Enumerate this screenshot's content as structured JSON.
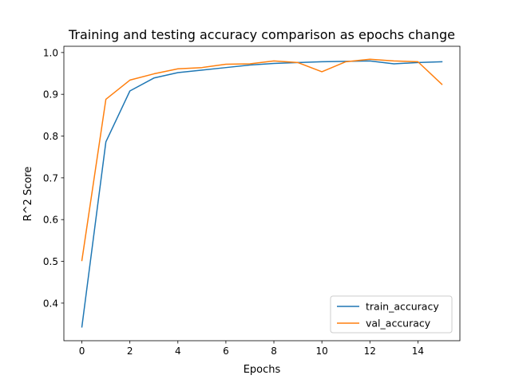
{
  "chart_data": {
    "type": "line",
    "title": "Training and testing accuracy comparison as epochs change",
    "xlabel": "Epochs",
    "ylabel": "R^2 Score",
    "xlim": [
      -0.75,
      15.75
    ],
    "ylim": [
      0.31,
      1.015
    ],
    "xticks": [
      0,
      2,
      4,
      6,
      8,
      10,
      12,
      14
    ],
    "xtick_labels": [
      "0",
      "2",
      "4",
      "6",
      "8",
      "10",
      "12",
      "14"
    ],
    "yticks": [
      0.4,
      0.5,
      0.6,
      0.7,
      0.8,
      0.9,
      1.0
    ],
    "ytick_labels": [
      "0.4",
      "0.5",
      "0.6",
      "0.7",
      "0.8",
      "0.9",
      "1.0"
    ],
    "grid": false,
    "legend_position": "lower-right",
    "x": [
      0,
      1,
      2,
      3,
      4,
      5,
      6,
      7,
      8,
      9,
      10,
      11,
      12,
      13,
      14,
      15
    ],
    "series": [
      {
        "name": "train_accuracy",
        "color": "#1f77b4",
        "values": [
          0.343,
          0.786,
          0.908,
          0.939,
          0.952,
          0.958,
          0.964,
          0.97,
          0.974,
          0.976,
          0.978,
          0.979,
          0.98,
          0.973,
          0.976,
          0.978
        ]
      },
      {
        "name": "val_accuracy",
        "color": "#ff7f0e",
        "values": [
          0.502,
          0.888,
          0.934,
          0.949,
          0.961,
          0.964,
          0.972,
          0.973,
          0.98,
          0.976,
          0.954,
          0.978,
          0.984,
          0.98,
          0.978,
          0.924
        ]
      }
    ]
  }
}
